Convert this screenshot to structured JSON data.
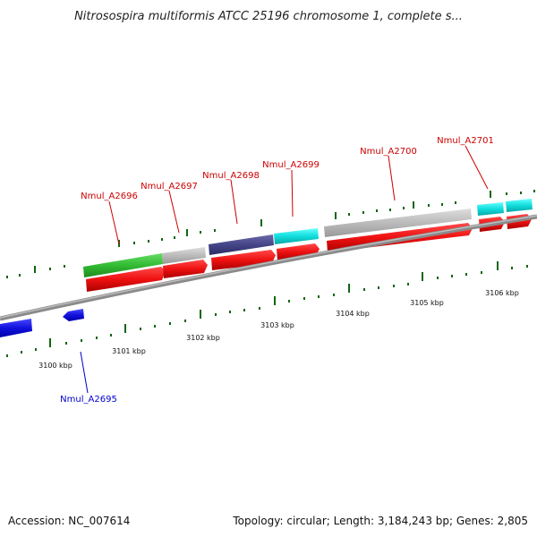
{
  "title": "Nitrosospira multiformis ATCC 25196 chromosome 1, complete s...",
  "footer": {
    "accession": "Accession: NC_007614",
    "summary": "Topology: circular; Length: 3,184,243 bp; Genes: 2,805"
  },
  "ruler": {
    "ticks": [
      "3100 kbp",
      "3101 kbp",
      "3102 kbp",
      "3103 kbp",
      "3104 kbp",
      "3105 kbp",
      "3106 kbp"
    ]
  },
  "genes": [
    {
      "label": "Nmul_A2695",
      "strand": "reverse",
      "color": "#0000cc"
    },
    {
      "label": "Nmul_A2696",
      "strand": "forward",
      "color": "#cc0000"
    },
    {
      "label": "Nmul_A2697",
      "strand": "forward",
      "color": "#cc0000"
    },
    {
      "label": "Nmul_A2698",
      "strand": "forward",
      "color": "#cc0000"
    },
    {
      "label": "Nmul_A2699",
      "strand": "forward",
      "color": "#cc0000"
    },
    {
      "label": "Nmul_A2700",
      "strand": "forward",
      "color": "#cc0000"
    },
    {
      "label": "Nmul_A2701",
      "strand": "forward",
      "color": "#cc0000"
    }
  ],
  "colors": {
    "cds": "#ee1111",
    "cog_green": "#33bb33",
    "cog_grey": "#bbbbbb",
    "cog_navy": "#444488",
    "cog_cyan": "#11dddd",
    "reverse_blue": "#1111dd",
    "tick": "#116611",
    "backbone": "#888888"
  }
}
